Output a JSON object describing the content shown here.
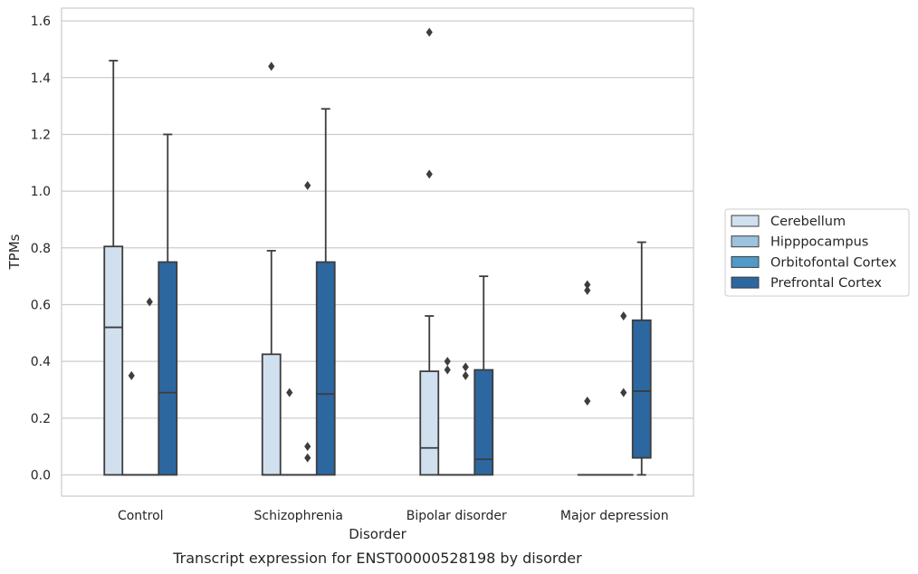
{
  "chart_data": {
    "type": "box",
    "caption": "Transcript expression for ENST00000528198 by disorder",
    "xlabel": "Disorder",
    "ylabel": "TPMs",
    "ylim": [
      -0.075,
      1.645
    ],
    "yticks": [
      0.0,
      0.2,
      0.4,
      0.6,
      0.8,
      1.0,
      1.2,
      1.4,
      1.6
    ],
    "ytick_labels": [
      "0.0",
      "0.2",
      "0.4",
      "0.6",
      "0.8",
      "1.0",
      "1.2",
      "1.4",
      "1.6"
    ],
    "grid": true,
    "legend_position": "right, vertically centered outside plot",
    "categories": [
      "Control",
      "Schizophrenia",
      "Bipolar disorder",
      "Major depression"
    ],
    "series": [
      {
        "name": "Cerebellum",
        "color": "#d1e0ef",
        "boxes": [
          {
            "min": 0.0,
            "q1": 0.0,
            "median": 0.52,
            "q3": 0.805,
            "max": 1.46,
            "outliers": []
          },
          {
            "min": 0.0,
            "q1": 0.0,
            "median": 0.0,
            "q3": 0.425,
            "max": 0.79,
            "outliers": [
              1.44
            ]
          },
          {
            "min": 0.0,
            "q1": 0.0,
            "median": 0.095,
            "q3": 0.365,
            "max": 0.56,
            "outliers": [
              1.06,
              1.56
            ]
          },
          {
            "min": 0.0,
            "q1": 0.0,
            "median": 0.0,
            "q3": 0.0,
            "max": 0.0,
            "outliers": [
              0.26,
              0.65,
              0.67
            ]
          }
        ]
      },
      {
        "name": "Hipppocampus",
        "color": "#9bc3de",
        "boxes": [
          {
            "min": 0.0,
            "q1": 0.0,
            "median": 0.0,
            "q3": 0.0,
            "max": 0.0,
            "outliers": [
              0.35
            ]
          },
          {
            "min": 0.0,
            "q1": 0.0,
            "median": 0.0,
            "q3": 0.0,
            "max": 0.0,
            "outliers": [
              0.29
            ]
          },
          {
            "min": 0.0,
            "q1": 0.0,
            "median": 0.0,
            "q3": 0.0,
            "max": 0.0,
            "outliers": [
              0.37,
              0.4
            ]
          },
          {
            "min": 0.0,
            "q1": 0.0,
            "median": 0.0,
            "q3": 0.0,
            "max": 0.0,
            "outliers": []
          }
        ]
      },
      {
        "name": "Orbitofontal Cortex",
        "color": "#5199c7",
        "boxes": [
          {
            "min": 0.0,
            "q1": 0.0,
            "median": 0.0,
            "q3": 0.0,
            "max": 0.0,
            "outliers": [
              0.61
            ]
          },
          {
            "min": 0.0,
            "q1": 0.0,
            "median": 0.0,
            "q3": 0.0,
            "max": 0.0,
            "outliers": [
              0.06,
              0.1,
              1.02
            ]
          },
          {
            "min": 0.0,
            "q1": 0.0,
            "median": 0.0,
            "q3": 0.0,
            "max": 0.0,
            "outliers": [
              0.35,
              0.38
            ]
          },
          {
            "min": 0.0,
            "q1": 0.0,
            "median": 0.0,
            "q3": 0.0,
            "max": 0.0,
            "outliers": [
              0.29,
              0.56
            ]
          }
        ]
      },
      {
        "name": "Prefrontal Cortex",
        "color": "#2c67a0",
        "boxes": [
          {
            "min": 0.0,
            "q1": 0.0,
            "median": 0.29,
            "q3": 0.75,
            "max": 1.2,
            "outliers": []
          },
          {
            "min": 0.0,
            "q1": 0.0,
            "median": 0.285,
            "q3": 0.75,
            "max": 1.29,
            "outliers": []
          },
          {
            "min": 0.0,
            "q1": 0.0,
            "median": 0.055,
            "q3": 0.37,
            "max": 0.7,
            "outliers": []
          },
          {
            "min": 0.0,
            "q1": 0.06,
            "median": 0.295,
            "q3": 0.545,
            "max": 0.82,
            "outliers": []
          }
        ]
      }
    ],
    "style": {
      "edge_color": "#3d3d3d",
      "grid_color": "#cccccc",
      "frame_color": "#cccccc",
      "text_color": "#262626"
    }
  }
}
